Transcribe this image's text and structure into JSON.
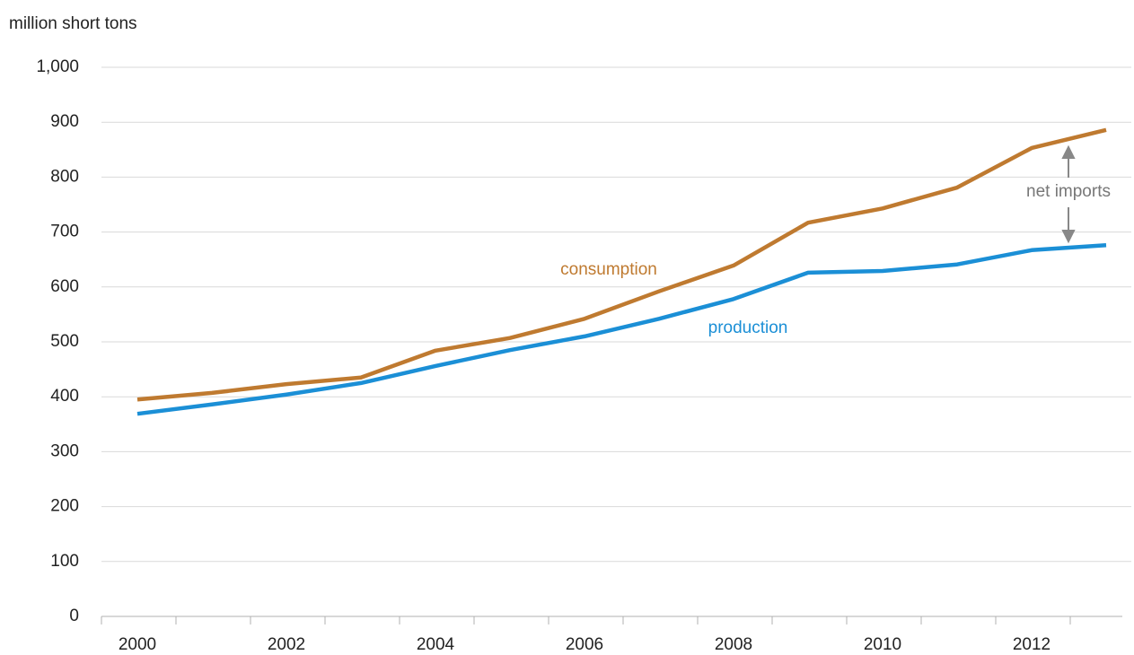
{
  "chart_data": {
    "type": "line",
    "y_axis_label": "million short tons",
    "categories": [
      "2000",
      null,
      "2002",
      null,
      "2004",
      null,
      "2006",
      null,
      "2008",
      null,
      "2010",
      null,
      "2012",
      null
    ],
    "series": [
      {
        "name": "consumption",
        "color": "#bf7a30",
        "values": [
          395,
          407,
          423,
          435,
          484,
          507,
          542,
          592,
          639,
          717,
          743,
          781,
          853,
          886
        ]
      },
      {
        "name": "production",
        "color": "#1b8fd6",
        "values": [
          369,
          386,
          404,
          425,
          456,
          485,
          510,
          542,
          578,
          626,
          629,
          641,
          667,
          676
        ]
      }
    ],
    "annotations": [
      "net imports"
    ],
    "ylim": [
      0,
      1000
    ],
    "yticks": [
      0,
      100,
      200,
      300,
      400,
      500,
      600,
      700,
      800,
      900,
      {
        "value": 1000,
        "label": "1,000"
      }
    ],
    "grid": true
  }
}
